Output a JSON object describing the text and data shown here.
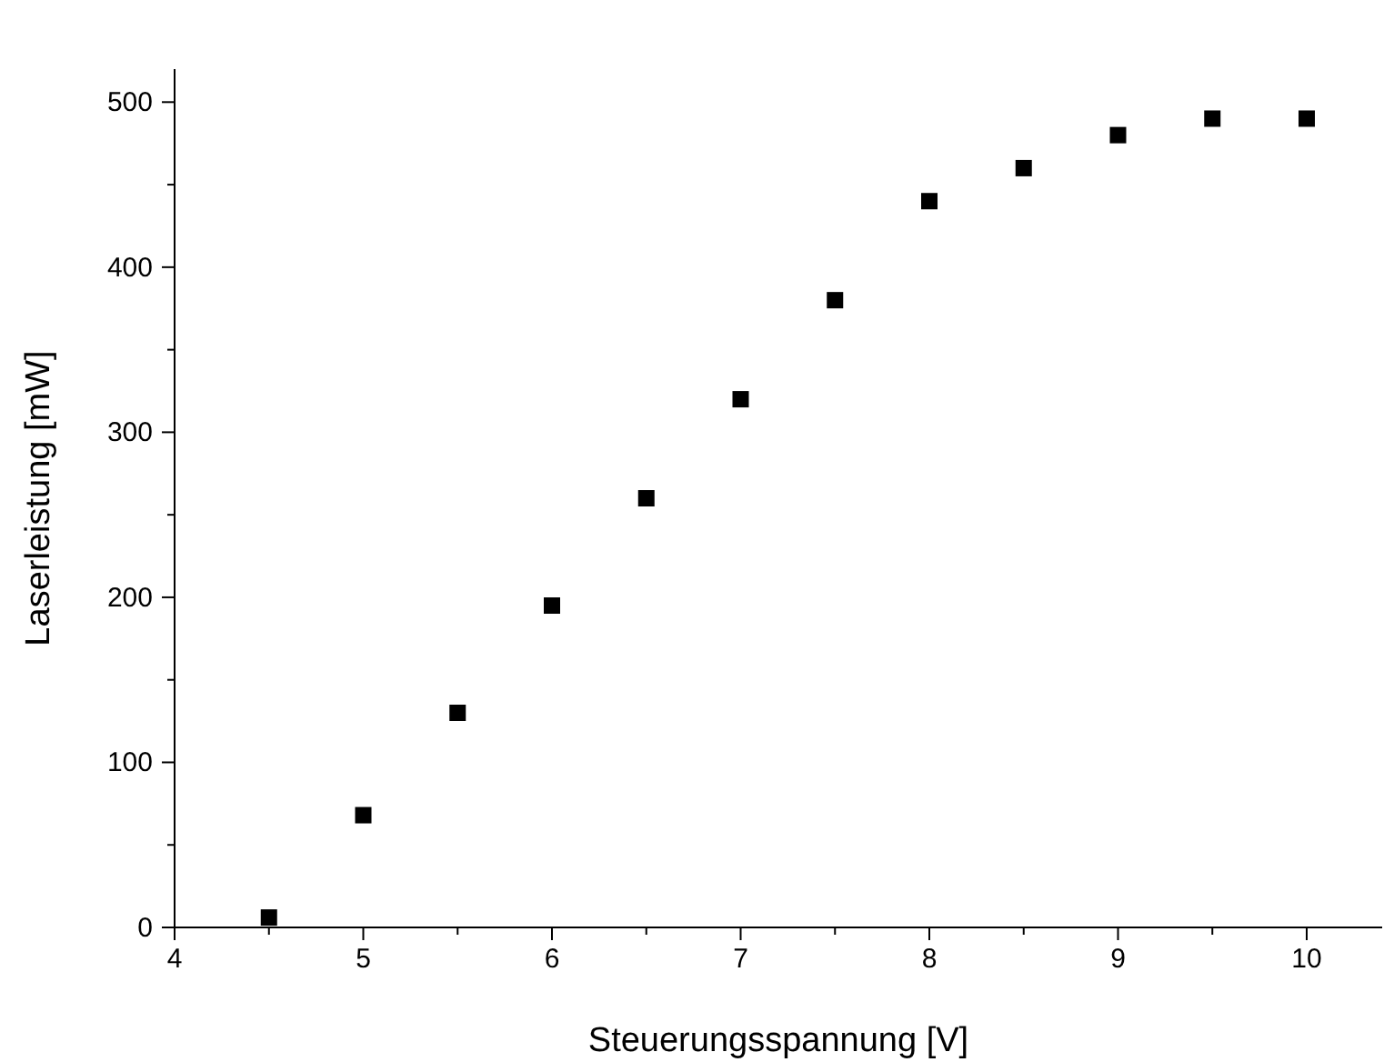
{
  "chart_data": {
    "type": "scatter",
    "xlabel": "Steuerungsspannung [V]",
    "ylabel": "Laserleistung [mW]",
    "x": [
      4.5,
      5,
      5.5,
      6,
      6.5,
      7,
      7.5,
      8,
      8.5,
      9,
      9.5,
      10
    ],
    "series": [
      {
        "color": "#000000",
        "values": [
          6,
          68,
          130,
          195,
          260,
          320,
          380,
          440,
          460,
          480,
          490,
          490
        ]
      }
    ],
    "marker": "square",
    "grid": false,
    "xlim": [
      4,
      10.4
    ],
    "xticks": [
      4,
      {
        "value": 4.5,
        "label": null
      },
      5,
      {
        "value": 5.5,
        "label": null
      },
      6,
      {
        "value": 6.5,
        "label": null
      },
      7,
      {
        "value": 7.5,
        "label": null
      },
      8,
      {
        "value": 8.5,
        "label": null
      },
      9,
      {
        "value": 9.5,
        "label": null
      },
      10
    ],
    "ylim": [
      0,
      520
    ],
    "yticks": [
      0,
      {
        "value": 50,
        "label": null
      },
      100,
      {
        "value": 150,
        "label": null
      },
      200,
      {
        "value": 250,
        "label": null
      },
      300,
      {
        "value": 350,
        "label": null
      },
      400,
      {
        "value": 450,
        "label": null
      },
      500
    ]
  }
}
